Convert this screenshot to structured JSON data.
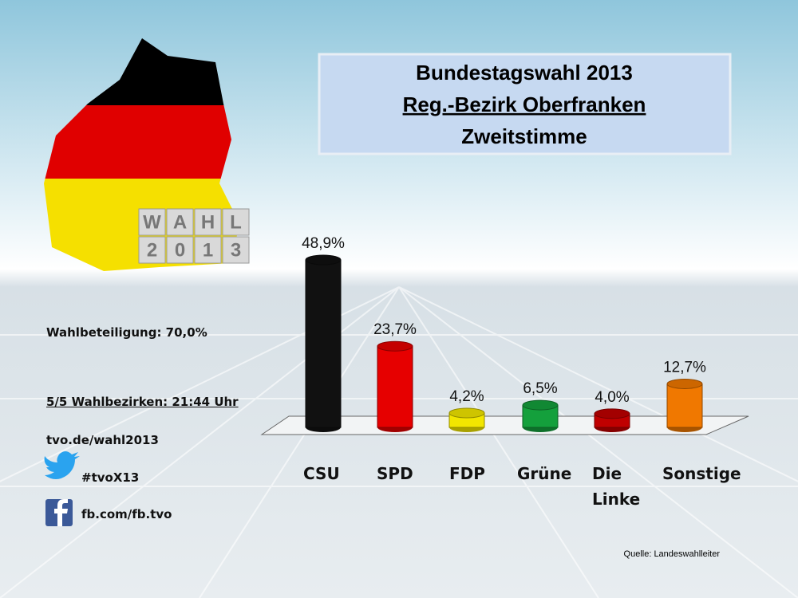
{
  "chart_data": {
    "type": "bar",
    "title": [
      "Bundestagswahl 2013",
      "Reg.-Bezirk Oberfranken",
      "Zweitstimme"
    ],
    "categories": [
      "CSU",
      "SPD",
      "FDP",
      "Grüne",
      "Die Linke",
      "Sonstige"
    ],
    "values": [
      48.9,
      23.7,
      4.2,
      6.5,
      4.0,
      12.7
    ],
    "value_labels": [
      "48,9%",
      "23,7%",
      "4,2%",
      "6,5%",
      "4,0%",
      "12,7%"
    ],
    "colors": [
      "#111111",
      "#e60000",
      "#f2e600",
      "#14a03c",
      "#c00000",
      "#f07800"
    ],
    "source": "Quelle: Landeswahlleiter"
  },
  "info": {
    "turnout": "Wahlbeteiligung: 70,0%",
    "districts": "5/5 Wahlbezirken: 21:44 Uhr",
    "web": "tvo.de/wahl2013",
    "twitter": "#tvoX13",
    "facebook": "fb.com/fb.tvo"
  },
  "logo": {
    "top": "WAHL",
    "bottom": "2013"
  }
}
